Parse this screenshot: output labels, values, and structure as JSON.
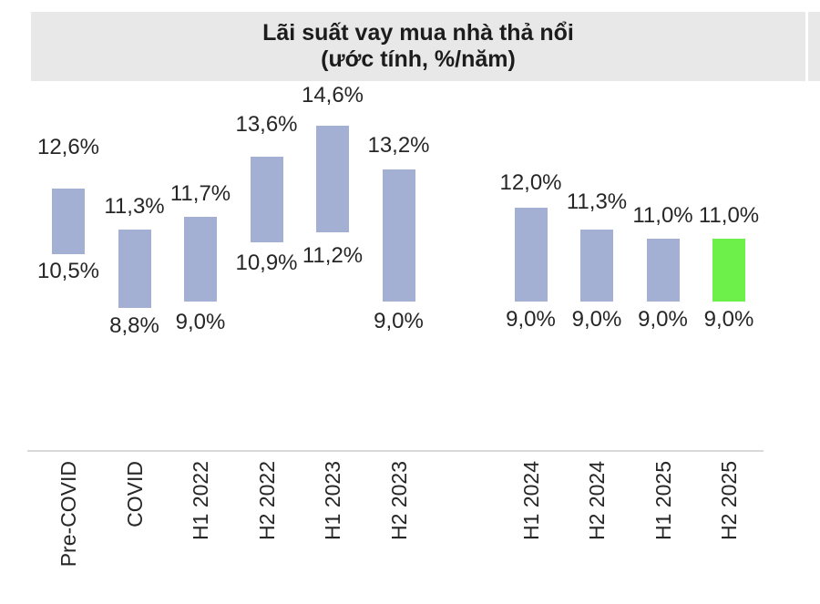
{
  "header": {
    "title_line1": "Lãi suất vay mua nhà thả nổi",
    "title_line2": "(ước tính, %/năm)"
  },
  "chart_data": {
    "type": "bar",
    "subtype": "floating-range-columns",
    "title": "Lãi suất vay mua nhà thả nổi (ước tính, %/năm)",
    "unit": "%/năm",
    "value_format": "decimal-comma-percent",
    "categories": [
      "Pre-COVID",
      "COVID",
      "H1 2022",
      "H2 2022",
      "H1 2023",
      "H2 2023",
      "H1 2024",
      "H2 2024",
      "H1 2025",
      "H2 2025"
    ],
    "series": [
      {
        "name": "range",
        "low": [
          10.5,
          8.8,
          9.0,
          10.9,
          11.2,
          9.0,
          9.0,
          9.0,
          9.0,
          9.0
        ],
        "high": [
          12.6,
          11.3,
          11.7,
          13.6,
          14.6,
          13.2,
          12.0,
          11.3,
          11.0,
          11.0
        ]
      }
    ],
    "labels_high": [
      "12,6%",
      "11,3%",
      "11,7%",
      "13,6%",
      "14,6%",
      "13,2%",
      "12,0%",
      "11,3%",
      "11,0%",
      "11,0%"
    ],
    "labels_low": [
      "10,5%",
      "8,8%",
      "9,0%",
      "10,9%",
      "11,2%",
      "9,0%",
      "9,0%",
      "9,0%",
      "9,0%",
      "9,0%"
    ],
    "highlight_index": 9,
    "gap_after_index": 5,
    "ylim": [
      8.8,
      14.6
    ],
    "grid": false,
    "legend": false,
    "colors": {
      "bar_default": "#a3afd3",
      "bar_highlight": "#6ef04b",
      "title_bg": "#e8e8e8",
      "axis_line": "#d9d9d9",
      "text": "#262626"
    }
  }
}
